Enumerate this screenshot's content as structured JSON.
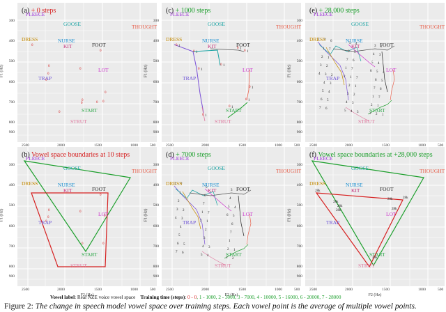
{
  "panels": [
    {
      "id": "a",
      "label": "(a)",
      "suffix": "+ 0 steps",
      "style": "red"
    },
    {
      "id": "c",
      "label": "(c)",
      "suffix": "+ 1000 steps",
      "style": "green"
    },
    {
      "id": "e",
      "label": "(e)",
      "suffix": "+ 28,000 steps",
      "style": "green"
    },
    {
      "id": "b",
      "label": "(b)",
      "suffix": "Vowel space boundaries at 10 steps",
      "style": "red"
    },
    {
      "id": "d",
      "label": "(d)",
      "suffix": "+ 7000 steps",
      "style": "green"
    },
    {
      "id": "f",
      "label": "(f)",
      "suffix": "Vowel space boundaries at +28,000 steps",
      "style": "green"
    }
  ],
  "vowel_labels": [
    {
      "text": "FLEECE",
      "color": "#9b30d9"
    },
    {
      "text": "GOOSE",
      "color": "#1aa3a3"
    },
    {
      "text": "THOUGHT",
      "color": "#e8604c"
    },
    {
      "text": "DRESS",
      "color": "#c48a00"
    },
    {
      "text": "NURSE",
      "color": "#1a8fd0"
    },
    {
      "text": "KIT",
      "color": "#c0307a"
    },
    {
      "text": "FOOT",
      "color": "#222222"
    },
    {
      "text": "LOT",
      "color": "#cc33cc"
    },
    {
      "text": "TRAP",
      "color": "#6a4fd6"
    },
    {
      "text": "START",
      "color": "#2ea84a"
    },
    {
      "text": "STRUT",
      "color": "#e07aa0"
    }
  ],
  "axes": {
    "x_ticks": [
      "2500",
      "2000",
      "1500",
      "1000",
      "500"
    ],
    "y_ticks": [
      "300",
      "400",
      "500",
      "600",
      "700",
      "800",
      "900"
    ],
    "xlabel": "F2 (Hz)",
    "ylabel": "F1 (Hz)"
  },
  "legend": {
    "vowel_label_title": "Vowel label",
    "vowel_label_text": ": Real NZE voice vowel space",
    "training_title": "Training time (steps)",
    "training_head": ": ",
    "red_part": "0 - 0",
    "green_part": ", 1 - 1000, 2 - 3000, 3 - 7000, 4 - 10000, 5 - 16000, 6 - 20000, 7 - 28000"
  },
  "caption": {
    "prefix": "Figure 2: ",
    "text": "The change in speech model vowel space over training steps. Each vowel point is the average of multiple vowel points."
  },
  "colors": {
    "red": "#d62020",
    "green": "#1a9e2a",
    "panel_bg": "#ebebeb"
  }
}
